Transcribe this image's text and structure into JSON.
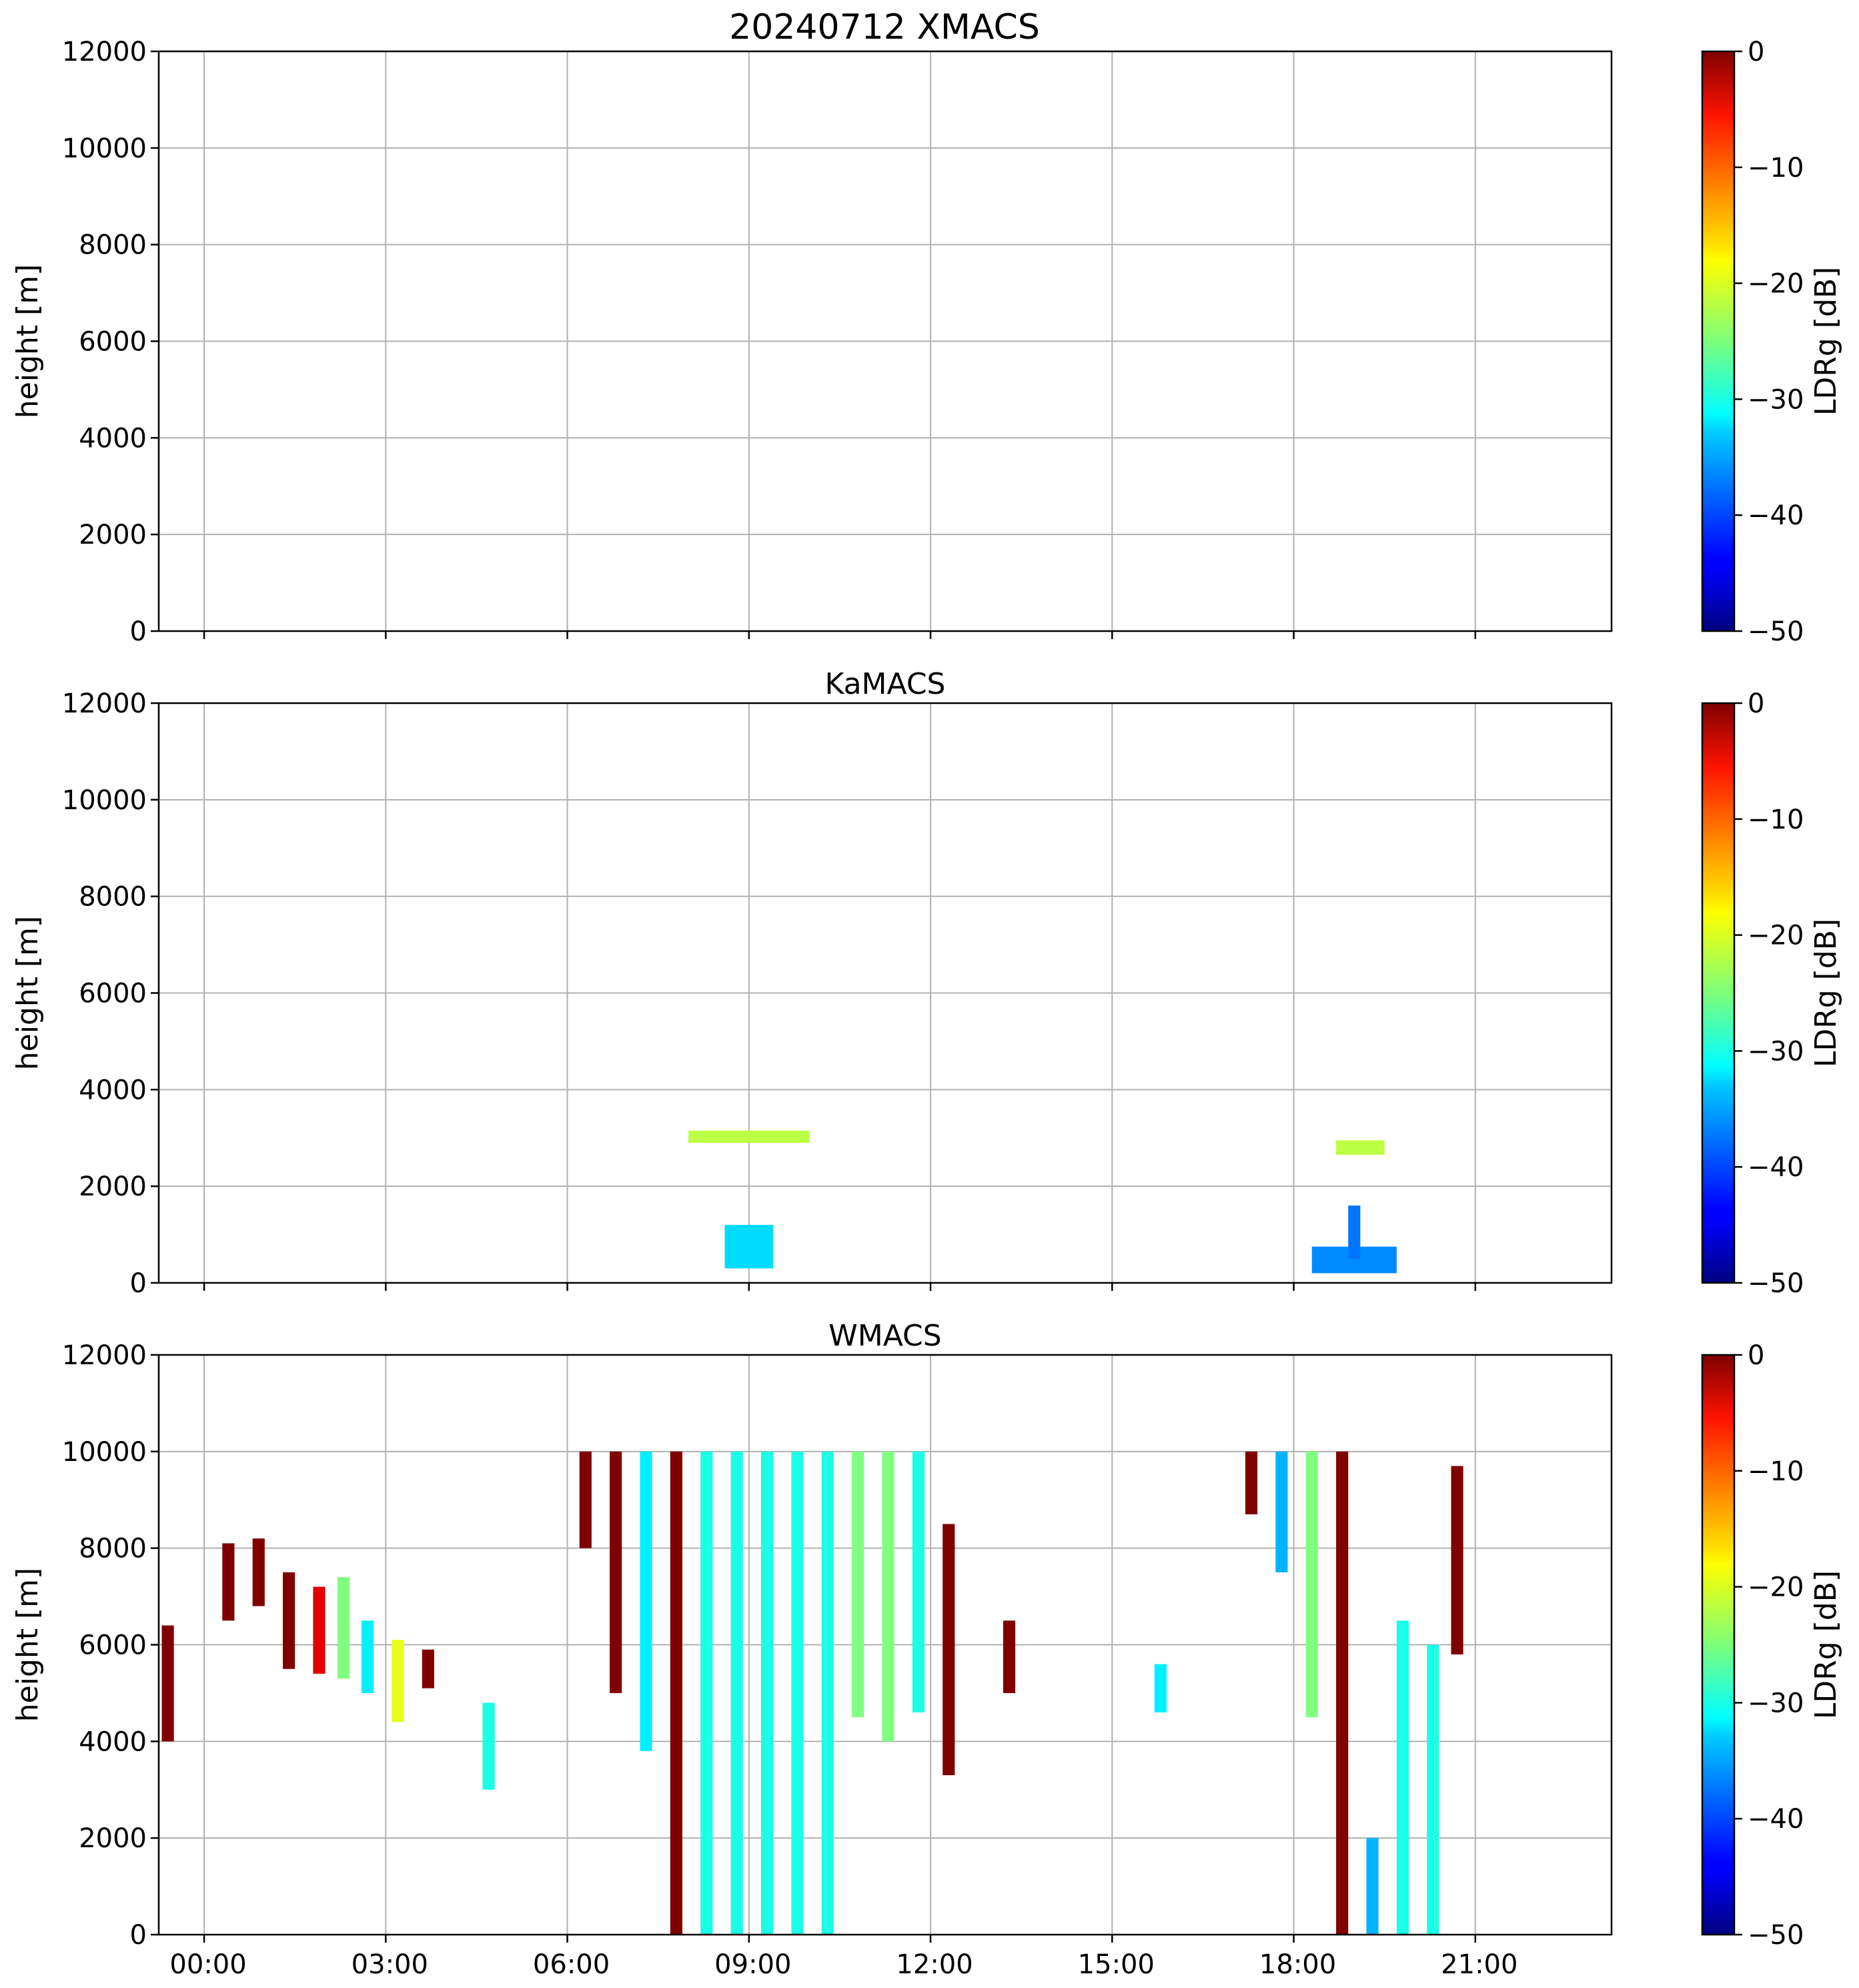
{
  "figure_title": "20240712 XMACS",
  "colorbar": {
    "label": "LDRg [dB]",
    "range": [
      -50,
      0
    ],
    "ticks": [
      "0",
      "−10",
      "−20",
      "−30",
      "−40",
      "−50"
    ],
    "colormap": "jet"
  },
  "chart_data": [
    {
      "type": "heatmap",
      "title": "",
      "ylabel": "height [m]",
      "ylim": [
        0,
        12000
      ],
      "yticks": [
        "0",
        "2000",
        "4000",
        "6000",
        "8000",
        "10000",
        "12000"
      ],
      "xlim_hours": [
        -0.75,
        23.25
      ],
      "xticks": [],
      "grid": true,
      "data_present": false,
      "echo_regions": []
    },
    {
      "type": "heatmap",
      "title": "KaMACS",
      "ylabel": "height [m]",
      "ylim": [
        0,
        12000
      ],
      "yticks": [
        "0",
        "2000",
        "4000",
        "6000",
        "8000",
        "10000",
        "12000"
      ],
      "xlim_hours": [
        -0.75,
        23.25
      ],
      "xticks": [],
      "grid": true,
      "data_present": true,
      "echo_regions": [
        {
          "t0": 8.0,
          "t1": 10.0,
          "h0": 2900,
          "h1": 3150,
          "ldr": -22
        },
        {
          "t0": 8.6,
          "t1": 9.4,
          "h0": 300,
          "h1": 1200,
          "ldr": -33
        },
        {
          "t0": 18.7,
          "t1": 19.5,
          "h0": 2650,
          "h1": 2950,
          "ldr": -22
        },
        {
          "t0": 18.3,
          "t1": 19.7,
          "h0": 200,
          "h1": 750,
          "ldr": -37
        },
        {
          "t0": 18.9,
          "t1": 19.1,
          "h0": 500,
          "h1": 1600,
          "ldr": -38
        }
      ]
    },
    {
      "type": "heatmap",
      "title": "WMACS",
      "ylabel": "height [m]",
      "ylim": [
        0,
        12000
      ],
      "yticks": [
        "0",
        "2000",
        "4000",
        "6000",
        "8000",
        "10000",
        "12000"
      ],
      "xlim_hours": [
        -0.75,
        23.25
      ],
      "xticks": [
        "00:00",
        "03:00",
        "06:00",
        "09:00",
        "12:00",
        "15:00",
        "18:00",
        "21:00"
      ],
      "grid": true,
      "data_present": true,
      "echo_regions": [
        {
          "t0": -0.7,
          "t1": -0.5,
          "h0": 4000,
          "h1": 6400,
          "ldr": 0
        },
        {
          "t0": 0.3,
          "t1": 0.5,
          "h0": 6500,
          "h1": 8100,
          "ldr": 0
        },
        {
          "t0": 0.8,
          "t1": 1.0,
          "h0": 6800,
          "h1": 8200,
          "ldr": 0
        },
        {
          "t0": 1.3,
          "t1": 1.5,
          "h0": 5500,
          "h1": 7500,
          "ldr": 0
        },
        {
          "t0": 1.8,
          "t1": 2.0,
          "h0": 5400,
          "h1": 7200,
          "ldr": -5
        },
        {
          "t0": 2.2,
          "t1": 2.4,
          "h0": 5300,
          "h1": 7400,
          "ldr": -25
        },
        {
          "t0": 2.6,
          "t1": 2.8,
          "h0": 5000,
          "h1": 6500,
          "ldr": -32
        },
        {
          "t0": 3.1,
          "t1": 3.3,
          "h0": 4400,
          "h1": 6100,
          "ldr": -20
        },
        {
          "t0": 3.6,
          "t1": 3.8,
          "h0": 5100,
          "h1": 5900,
          "ldr": 0
        },
        {
          "t0": 4.6,
          "t1": 4.8,
          "h0": 3000,
          "h1": 4800,
          "ldr": -30
        },
        {
          "t0": 6.2,
          "t1": 6.4,
          "h0": 8000,
          "h1": 10000,
          "ldr": 0
        },
        {
          "t0": 6.7,
          "t1": 6.9,
          "h0": 5000,
          "h1": 10000,
          "ldr": 0
        },
        {
          "t0": 7.2,
          "t1": 7.4,
          "h0": 3800,
          "h1": 10000,
          "ldr": -32
        },
        {
          "t0": 7.7,
          "t1": 7.9,
          "h0": 0,
          "h1": 10000,
          "ldr": 0
        },
        {
          "t0": 8.2,
          "t1": 8.4,
          "h0": 0,
          "h1": 10000,
          "ldr": -30
        },
        {
          "t0": 8.7,
          "t1": 8.9,
          "h0": 0,
          "h1": 10000,
          "ldr": -30
        },
        {
          "t0": 9.2,
          "t1": 9.4,
          "h0": 0,
          "h1": 10000,
          "ldr": -30
        },
        {
          "t0": 9.7,
          "t1": 9.9,
          "h0": 0,
          "h1": 10000,
          "ldr": -30
        },
        {
          "t0": 10.2,
          "t1": 10.4,
          "h0": 0,
          "h1": 10000,
          "ldr": -30
        },
        {
          "t0": 10.7,
          "t1": 10.9,
          "h0": 4500,
          "h1": 10000,
          "ldr": -25
        },
        {
          "t0": 11.2,
          "t1": 11.4,
          "h0": 4000,
          "h1": 10000,
          "ldr": -25
        },
        {
          "t0": 11.7,
          "t1": 11.9,
          "h0": 4600,
          "h1": 10000,
          "ldr": -30
        },
        {
          "t0": 12.2,
          "t1": 12.4,
          "h0": 3300,
          "h1": 8500,
          "ldr": 0
        },
        {
          "t0": 13.2,
          "t1": 13.4,
          "h0": 5000,
          "h1": 6500,
          "ldr": 0
        },
        {
          "t0": 15.7,
          "t1": 15.9,
          "h0": 4600,
          "h1": 5600,
          "ldr": -32
        },
        {
          "t0": 17.2,
          "t1": 17.4,
          "h0": 8700,
          "h1": 10000,
          "ldr": 0
        },
        {
          "t0": 17.7,
          "t1": 17.9,
          "h0": 7500,
          "h1": 10000,
          "ldr": -35
        },
        {
          "t0": 18.2,
          "t1": 18.4,
          "h0": 4500,
          "h1": 10000,
          "ldr": -25
        },
        {
          "t0": 18.7,
          "t1": 18.9,
          "h0": 0,
          "h1": 10000,
          "ldr": 0
        },
        {
          "t0": 19.2,
          "t1": 19.4,
          "h0": 0,
          "h1": 2000,
          "ldr": -35
        },
        {
          "t0": 19.7,
          "t1": 19.9,
          "h0": 0,
          "h1": 6500,
          "ldr": -30
        },
        {
          "t0": 20.2,
          "t1": 20.4,
          "h0": 0,
          "h1": 6000,
          "ldr": -30
        },
        {
          "t0": 20.6,
          "t1": 20.8,
          "h0": 5800,
          "h1": 9700,
          "ldr": 0
        }
      ]
    }
  ]
}
